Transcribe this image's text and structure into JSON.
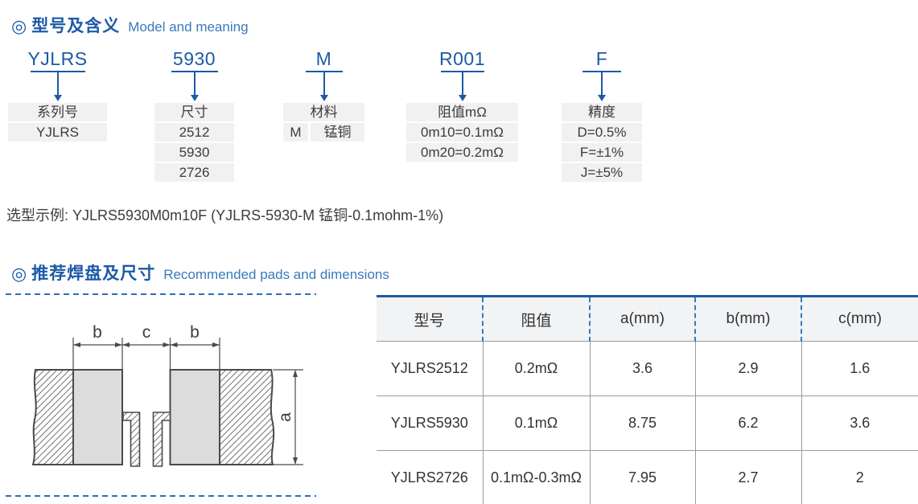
{
  "colors": {
    "primary_blue": "#1c5aa6",
    "subtitle_blue": "#3a79be",
    "dash_blue": "#2f6eb6",
    "box_gray": "#f1f1f1",
    "text_dark": "#3c3c3c",
    "table_border": "#9b9b9b",
    "header_bg": "#f2f3f5",
    "pad_fill": "#dcdcdc",
    "line_dark": "#4a4a4a"
  },
  "section1": {
    "bullet_icon": "◎",
    "title_zh": "型号及含义",
    "title_en": "Model and meaning",
    "columns": [
      {
        "code": "YJLRS",
        "cells": [
          [
            "系列号"
          ],
          [
            "YJLRS"
          ]
        ]
      },
      {
        "code": "5930",
        "cells": [
          [
            "尺寸"
          ],
          [
            "2512"
          ],
          [
            "5930"
          ],
          [
            "2726"
          ]
        ]
      },
      {
        "code": "M",
        "cells": [
          [
            "材料"
          ],
          [
            "M",
            "锰铜"
          ]
        ]
      },
      {
        "code": "R001",
        "cells": [
          [
            "阻值mΩ"
          ],
          [
            "0m10=0.1mΩ"
          ],
          [
            "0m20=0.2mΩ"
          ]
        ]
      },
      {
        "code": "F",
        "cells": [
          [
            "精度"
          ],
          [
            "D=0.5%"
          ],
          [
            "F=±1%"
          ],
          [
            "J=±5%"
          ]
        ]
      }
    ],
    "example": "选型示例: YJLRS5930M0m10F (YJLRS-5930-M 锰铜-0.1mohm-1%)"
  },
  "section2": {
    "bullet_icon": "◎",
    "title_zh": "推荐焊盘及尺寸",
    "title_en": "Recommended pads and dimensions",
    "drawing_labels": {
      "b_left": "b",
      "c": "c",
      "b_right": "b",
      "a": "a"
    },
    "table": {
      "headers": [
        "型号",
        "阻值",
        "a(mm)",
        "b(mm)",
        "c(mm)"
      ],
      "rows": [
        [
          "YJLRS2512",
          "0.2mΩ",
          "3.6",
          "2.9",
          "1.6"
        ],
        [
          "YJLRS5930",
          "0.1mΩ",
          "8.75",
          "6.2",
          "3.6"
        ],
        [
          "YJLRS2726",
          "0.1mΩ-0.3mΩ",
          "7.95",
          "2.7",
          "2"
        ]
      ]
    }
  }
}
